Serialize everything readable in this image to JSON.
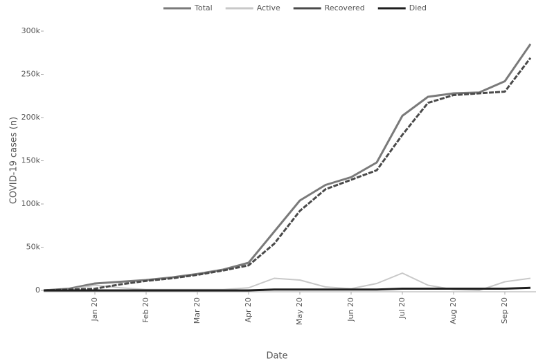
{
  "chart_data": {
    "type": "line",
    "x_label": "Date",
    "y_label": "COVID-19 cases (n)",
    "categories": [
      null,
      null,
      "Jan 20",
      null,
      "Feb 20",
      null,
      "Mar 20",
      null,
      "Apr 20",
      null,
      "May 20",
      null,
      "Jun 20",
      null,
      "Jul 20",
      null,
      "Aug 20",
      null,
      "Sep 20",
      null
    ],
    "series": [
      {
        "name": "Total",
        "color": "#7a7a7a",
        "values": [
          0,
          2,
          8,
          10,
          12,
          15,
          19,
          24,
          32,
          68,
          104,
          122,
          131,
          148,
          202,
          224,
          228,
          229,
          242,
          285
        ]
      },
      {
        "name": "Active",
        "color": "#c8c8c8",
        "values": [
          0,
          1,
          6,
          3,
          1,
          1,
          1,
          1,
          3,
          14,
          12,
          4,
          2,
          8,
          20,
          6,
          1,
          0,
          10,
          14
        ]
      },
      {
        "name": "Recovered",
        "color": "#4a4a4a",
        "values": [
          0,
          1,
          2,
          7,
          11,
          14,
          18,
          23,
          29,
          54,
          92,
          117,
          128,
          139,
          180,
          217,
          226,
          228,
          230,
          269
        ]
      },
      {
        "name": "Died",
        "color": "#1e1e1e",
        "values": [
          0,
          0,
          0,
          0,
          0,
          0,
          0,
          0,
          0,
          1,
          1,
          1,
          1,
          1,
          2,
          2,
          2,
          2,
          2,
          3
        ]
      }
    ],
    "ylim": [
      0,
      300
    ],
    "yticks": [
      0,
      {
        "value": 50,
        "label": "50k"
      },
      {
        "value": 100,
        "label": "100k"
      },
      {
        "value": 150,
        "label": "150k"
      },
      {
        "value": 200,
        "label": "200k"
      },
      {
        "value": 250,
        "label": "250k"
      },
      {
        "value": 300,
        "label": "300k"
      }
    ],
    "legend": "top"
  }
}
